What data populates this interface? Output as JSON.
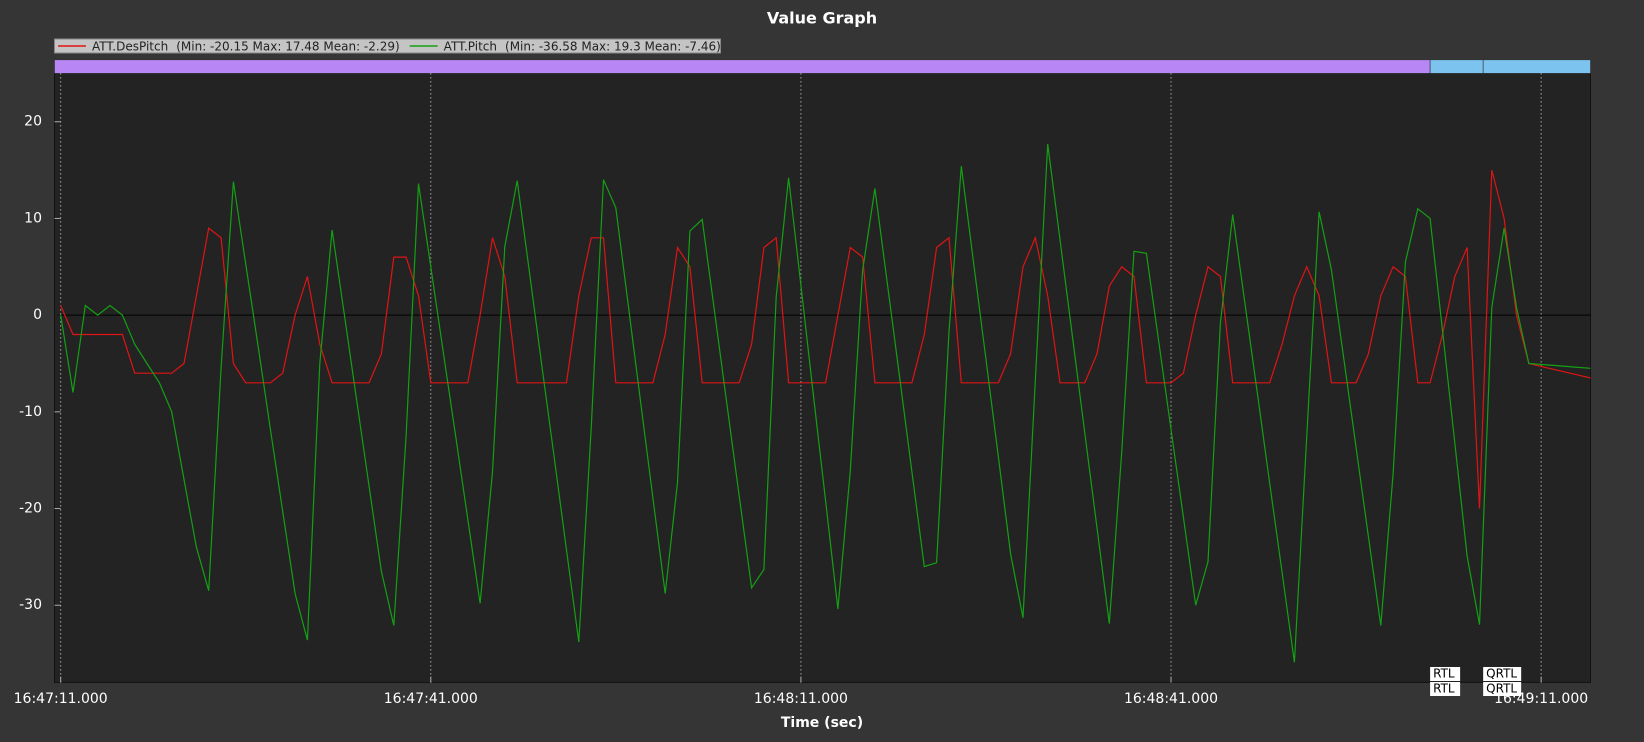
{
  "chart_data": {
    "type": "line",
    "title": "Value Graph",
    "x_label": "Time (sec)",
    "x": [
      "16:47:11.000",
      "16:47:12.000",
      "16:47:13.000",
      "16:47:14.000",
      "16:47:15.000",
      "16:47:16.000",
      "16:47:17.000",
      "16:47:18.000",
      "16:47:19.000",
      "16:47:20.000",
      "16:47:21.000",
      "16:47:22.000",
      "16:47:23.000",
      "16:47:24.000",
      "16:47:25.000",
      "16:47:26.000",
      "16:47:27.000",
      "16:47:28.000",
      "16:47:29.000",
      "16:47:30.000",
      "16:47:31.000",
      "16:47:32.000",
      "16:47:33.000",
      "16:47:34.000",
      "16:47:35.000",
      "16:47:36.000",
      "16:47:37.000",
      "16:47:38.000",
      "16:47:39.000",
      "16:47:40.000",
      "16:47:41.000",
      "16:47:42.000",
      "16:47:43.000",
      "16:47:44.000",
      "16:47:45.000",
      "16:47:46.000",
      "16:47:47.000",
      "16:47:48.000",
      "16:47:49.000",
      "16:47:50.000",
      "16:47:51.000",
      "16:47:52.000",
      "16:47:53.000",
      "16:47:54.000",
      "16:47:55.000",
      "16:47:56.000",
      "16:47:57.000",
      "16:47:58.000",
      "16:47:59.000",
      "16:48:00.000",
      "16:48:01.000",
      "16:48:02.000",
      "16:48:03.000",
      "16:48:04.000",
      "16:48:05.000",
      "16:48:06.000",
      "16:48:07.000",
      "16:48:08.000",
      "16:48:09.000",
      "16:48:10.000",
      "16:48:11.000",
      "16:48:12.000",
      "16:48:13.000",
      "16:48:14.000",
      "16:48:15.000",
      "16:48:16.000",
      "16:48:17.000",
      "16:48:18.000",
      "16:48:19.000",
      "16:48:20.000",
      "16:48:21.000",
      "16:48:22.000",
      "16:48:23.000",
      "16:48:24.000",
      "16:48:25.000",
      "16:48:26.000",
      "16:48:27.000",
      "16:48:28.000",
      "16:48:29.000",
      "16:48:30.000",
      "16:48:31.000",
      "16:48:32.000",
      "16:48:33.000",
      "16:48:34.000",
      "16:48:35.000",
      "16:48:36.000",
      "16:48:37.000",
      "16:48:38.000",
      "16:48:39.000",
      "16:48:40.000",
      "16:48:41.000",
      "16:48:42.000",
      "16:48:43.000",
      "16:48:44.000",
      "16:48:45.000",
      "16:48:46.000",
      "16:48:47.000",
      "16:48:48.000",
      "16:48:49.000",
      "16:48:50.000",
      "16:48:51.000",
      "16:48:52.000",
      "16:48:53.000",
      "16:48:54.000",
      "16:48:55.000",
      "16:48:56.000",
      "16:48:57.000",
      "16:48:58.000",
      "16:48:59.000",
      "16:49:00.000",
      "16:49:01.000",
      "16:49:02.000",
      "16:49:03.000",
      "16:49:04.000",
      "16:49:05.000",
      "16:49:06.000",
      "16:49:07.000",
      "16:49:08.000",
      "16:49:09.000",
      "16:49:10.000",
      "16:49:11.000",
      "16:49:12.000",
      "16:49:13.000",
      "16:49:14.000",
      "16:49:15.000"
    ],
    "series": [
      {
        "name": "ATT.DesPitch",
        "stats": "(Min: -20.15 Max: 17.48 Mean: -2.29)",
        "color": "#e01414",
        "values": [
          1,
          -2,
          -2,
          -2,
          -2,
          -2,
          -6,
          -6,
          -6,
          -6,
          -5,
          2,
          9,
          8,
          -5,
          -7,
          -7,
          -7,
          -6,
          0,
          4,
          -3,
          -7,
          -7,
          -7,
          -7,
          -4,
          6,
          6,
          2,
          -7,
          -7,
          -7,
          -7,
          0,
          8,
          4,
          -7,
          -7,
          -7,
          -7,
          -7,
          2,
          8,
          8,
          -7,
          -7,
          -7,
          -7,
          -2,
          7,
          5,
          -7,
          -7,
          -7,
          -7,
          -3,
          7,
          8,
          -7,
          -7,
          -7,
          -7,
          0,
          7,
          6,
          -7,
          -7,
          -7,
          -7,
          -2,
          7,
          8,
          -7,
          -7,
          -7,
          -7,
          -4,
          5,
          8,
          2,
          -7,
          -7,
          -7,
          -4,
          3,
          5,
          4,
          -7,
          -7,
          -7,
          -6,
          0,
          5,
          4,
          -7,
          -7,
          -7,
          -7,
          -3,
          2,
          5,
          2,
          -7,
          -7,
          -7,
          -4,
          2,
          5,
          4,
          -7,
          -7,
          -2,
          4,
          7,
          -20,
          15,
          10,
          0,
          -5,
          -5.3,
          -5.6,
          -5.9,
          -6.2,
          -6.5
        ]
      },
      {
        "name": "ATT.Pitch",
        "stats": "(Min: -36.58 Max: 19.3 Mean: -7.46)",
        "color": "#14a014",
        "values": [
          0,
          -8,
          1,
          0,
          1,
          0,
          -3,
          -5,
          -7,
          -10,
          -17,
          -24,
          -28.5,
          -5.4,
          13.8,
          5.3,
          -3.2,
          -11.8,
          -20.3,
          -28.8,
          -33.6,
          -5,
          8.8,
          0,
          -8.9,
          -17.7,
          -26.5,
          -32.1,
          -12.5,
          13.6,
          5,
          -3.7,
          -12.4,
          -21.1,
          -29.8,
          -16.2,
          7.1,
          13.9,
          4.4,
          -5.2,
          -14.7,
          -24.3,
          -33.8,
          -11.7,
          14,
          11.1,
          1.1,
          -8.9,
          -18.9,
          -28.8,
          -17.3,
          8.7,
          9.9,
          0.4,
          -9.2,
          -18.7,
          -28.2,
          -26.3,
          1.9,
          14.2,
          3.1,
          -8.1,
          -19.2,
          -30.4,
          -16.1,
          4.6,
          13.1,
          3.3,
          -6.4,
          -16.2,
          -26,
          -25.6,
          -1.7,
          15.4,
          5.4,
          -4.6,
          -14.6,
          -24.7,
          -31.3,
          -6.8,
          17.7,
          7.8,
          -2.1,
          -12.1,
          -22,
          -31.9,
          -14.2,
          6.6,
          6.4,
          -2.7,
          -11.8,
          -20.9,
          -30,
          -25.5,
          -0.8,
          10.4,
          1.1,
          -8.1,
          -17.4,
          -26.6,
          -35.9,
          -12.6,
          10.7,
          4.7,
          -4.5,
          -13.7,
          -22.9,
          -32.1,
          -16.4,
          5.5,
          11,
          10,
          -1.6,
          -13.2,
          -24.9,
          -32,
          0.8,
          9,
          0.8,
          -5,
          -5.1,
          -5.2,
          -5.3,
          -5.4,
          -5.5
        ]
      }
    ],
    "xlim": [
      "16:47:10.500",
      "16:49:15.000"
    ],
    "xticks": [
      "16:47:11.000",
      "16:47:41.000",
      "16:48:11.000",
      "16:48:41.000",
      "16:49:11.000"
    ],
    "ylim": [
      -38,
      25
    ],
    "yticks": [
      -30,
      -20,
      -10,
      0,
      10,
      20
    ],
    "xgrid": true,
    "zero_line": true,
    "modes": [
      {
        "start": "16:47:10.500",
        "color": "#b987f5"
      },
      {
        "start": "16:49:02.000",
        "color": "#7cc4ef",
        "label": "RTL"
      },
      {
        "start": "16:49:06.300",
        "color": "#7cc4ef",
        "label": "QRTL"
      }
    ]
  }
}
